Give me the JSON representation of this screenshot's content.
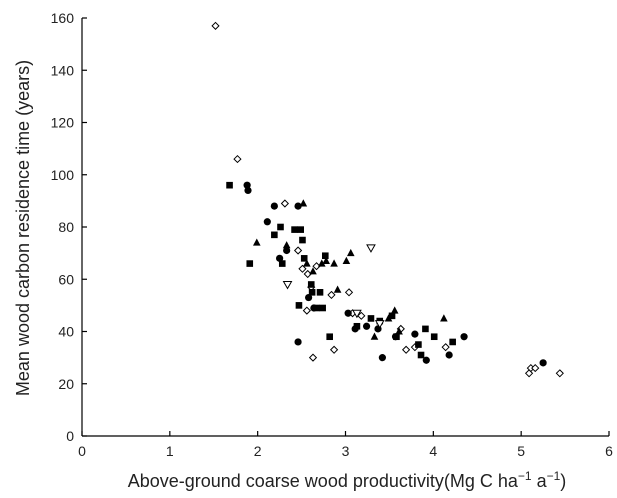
{
  "chart_data": {
    "type": "scatter",
    "xlabel": "Above-ground coarse wood productivity(Mg C ha",
    "xlabel_sup1": "−1",
    "xlabel_mid": " a",
    "xlabel_sup2": "−1",
    "xlabel_end": ")",
    "ylabel": "Mean wood carbon residence time (years)",
    "xlim": [
      0,
      6
    ],
    "ylim": [
      0,
      160
    ],
    "xticks": [
      "0",
      "1",
      "2",
      "3",
      "4",
      "5",
      "6"
    ],
    "yticks": [
      "0",
      "20",
      "40",
      "60",
      "80",
      "100",
      "120",
      "140",
      "160"
    ],
    "xtick_values": [
      0,
      1,
      2,
      3,
      4,
      5,
      6
    ],
    "ytick_values": [
      0,
      20,
      40,
      60,
      80,
      100,
      120,
      140,
      160
    ],
    "grid": false,
    "legend": "none",
    "series": [
      {
        "marker": "diamond-open",
        "color": "#000000",
        "points": [
          [
            1.52,
            157
          ],
          [
            1.77,
            106
          ],
          [
            2.31,
            89
          ],
          [
            2.46,
            71
          ],
          [
            2.51,
            64
          ],
          [
            2.57,
            62
          ],
          [
            2.61,
            57
          ],
          [
            2.63,
            30
          ],
          [
            2.67,
            65
          ],
          [
            2.56,
            48
          ],
          [
            2.84,
            54
          ],
          [
            2.87,
            33
          ],
          [
            3.04,
            55
          ],
          [
            3.08,
            47
          ],
          [
            3.18,
            46
          ],
          [
            3.63,
            41
          ],
          [
            3.69,
            33
          ],
          [
            3.79,
            34
          ],
          [
            4.14,
            34
          ],
          [
            5.09,
            24
          ],
          [
            5.11,
            26
          ],
          [
            5.16,
            26
          ],
          [
            5.44,
            24
          ]
        ]
      },
      {
        "marker": "circle-filled",
        "color": "#000000",
        "points": [
          [
            1.88,
            96
          ],
          [
            1.89,
            94
          ],
          [
            2.11,
            82
          ],
          [
            2.19,
            88
          ],
          [
            2.25,
            68
          ],
          [
            2.33,
            71
          ],
          [
            2.46,
            88
          ],
          [
            2.46,
            36
          ],
          [
            2.58,
            53
          ],
          [
            2.64,
            49
          ],
          [
            3.03,
            47
          ],
          [
            3.11,
            41
          ],
          [
            3.24,
            42
          ],
          [
            3.37,
            41
          ],
          [
            3.42,
            30
          ],
          [
            3.57,
            38
          ],
          [
            3.79,
            39
          ],
          [
            3.92,
            29
          ],
          [
            4.18,
            31
          ],
          [
            4.35,
            38
          ],
          [
            5.25,
            28
          ]
        ]
      },
      {
        "marker": "square-filled",
        "color": "#000000",
        "points": [
          [
            1.68,
            96
          ],
          [
            1.91,
            66
          ],
          [
            2.19,
            77
          ],
          [
            2.26,
            80
          ],
          [
            2.28,
            66
          ],
          [
            2.42,
            79
          ],
          [
            2.47,
            50
          ],
          [
            2.49,
            79
          ],
          [
            2.51,
            75
          ],
          [
            2.53,
            68
          ],
          [
            2.61,
            58
          ],
          [
            2.62,
            55
          ],
          [
            2.67,
            49
          ],
          [
            2.71,
            55
          ],
          [
            2.74,
            49
          ],
          [
            2.77,
            69
          ],
          [
            2.82,
            38
          ],
          [
            3.13,
            42
          ],
          [
            3.29,
            45
          ],
          [
            3.39,
            44
          ],
          [
            3.53,
            46
          ],
          [
            3.58,
            38
          ],
          [
            3.83,
            35
          ],
          [
            3.86,
            31
          ],
          [
            3.91,
            41
          ],
          [
            4.01,
            38
          ],
          [
            4.22,
            36
          ]
        ]
      },
      {
        "marker": "triangle-up-filled",
        "color": "#000000",
        "points": [
          [
            1.99,
            74
          ],
          [
            2.33,
            73
          ],
          [
            2.52,
            89
          ],
          [
            2.56,
            66
          ],
          [
            2.63,
            63
          ],
          [
            2.73,
            66
          ],
          [
            2.78,
            67
          ],
          [
            2.87,
            66
          ],
          [
            2.91,
            56
          ],
          [
            3.01,
            67
          ],
          [
            3.06,
            70
          ],
          [
            3.33,
            38
          ],
          [
            3.49,
            45
          ],
          [
            3.56,
            48
          ],
          [
            3.61,
            40
          ],
          [
            4.12,
            45
          ]
        ]
      },
      {
        "marker": "triangle-down-open",
        "color": "#000000",
        "points": [
          [
            2.34,
            58
          ],
          [
            3.13,
            47
          ],
          [
            3.29,
            72
          ],
          [
            3.39,
            43
          ]
        ]
      }
    ]
  }
}
